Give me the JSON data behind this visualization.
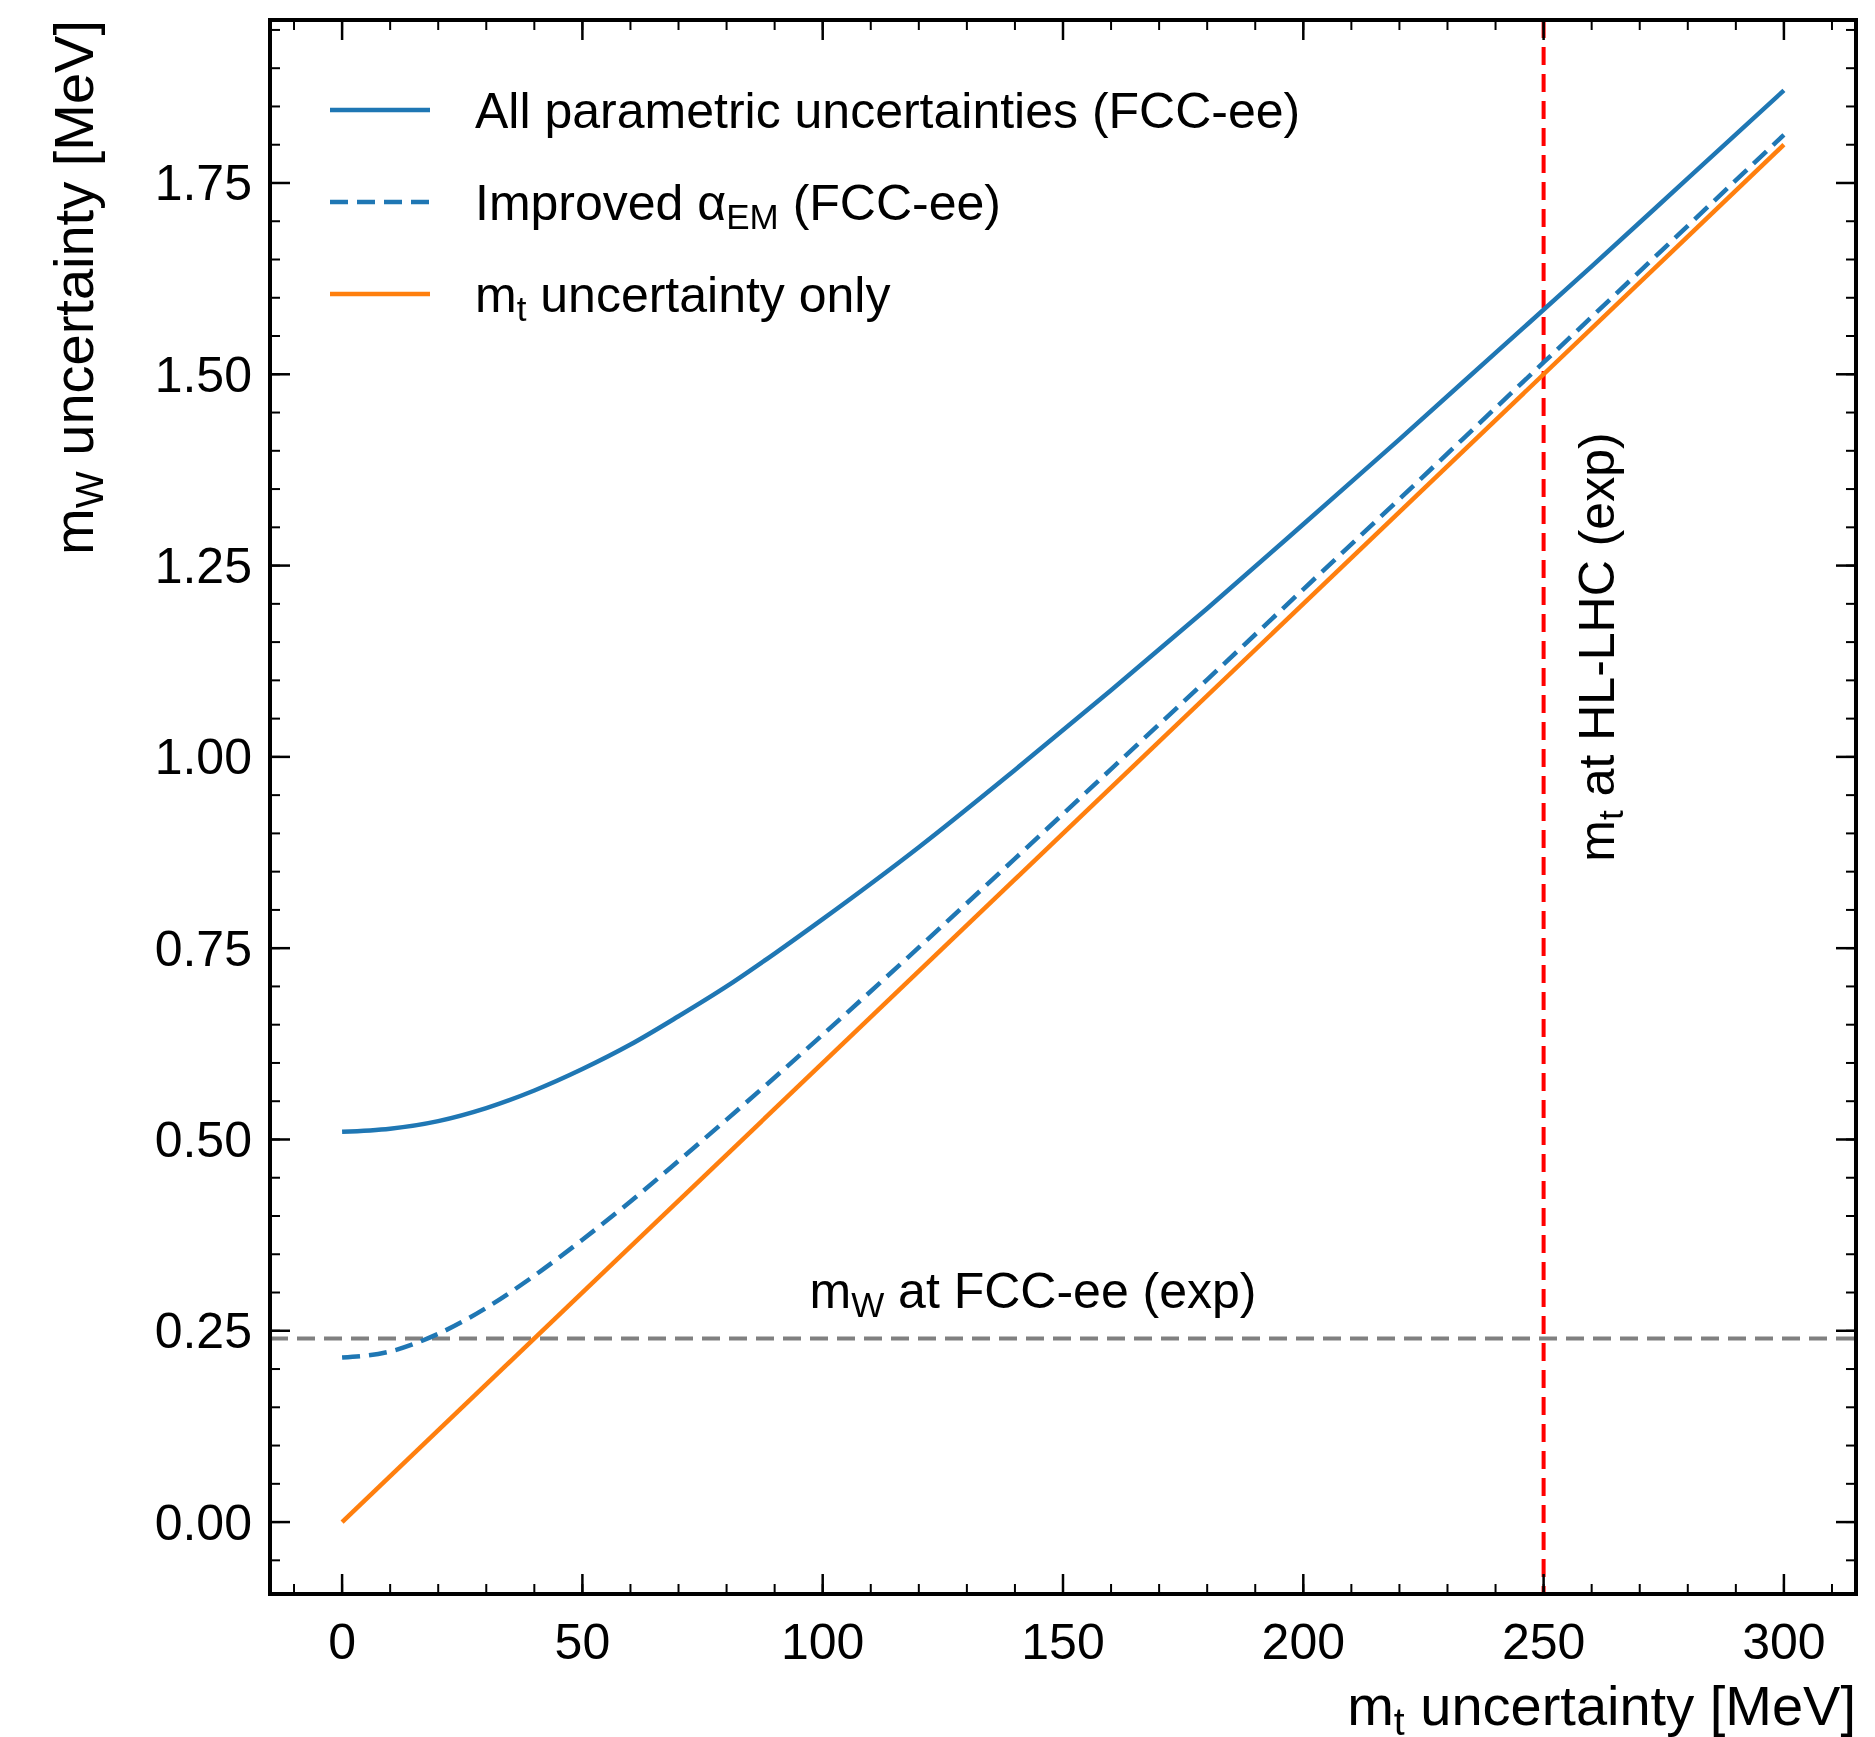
{
  "chart_data": {
    "type": "line",
    "xlabel": "m$_{t}$ uncertainty [MeV]",
    "ylabel": "m$_{W}$ uncertainty [MeV]",
    "xlim": [
      -15,
      315
    ],
    "ylim": [
      -0.094,
      1.963
    ],
    "xticks": [
      0,
      50,
      100,
      150,
      200,
      250,
      300
    ],
    "yticks": [
      {
        "value": 0,
        "label": "0.00"
      },
      {
        "value": 0.25,
        "label": "0.25"
      },
      {
        "value": 0.5,
        "label": "0.50"
      },
      {
        "value": 0.75,
        "label": "0.75"
      },
      {
        "value": 1,
        "label": "1.00"
      },
      {
        "value": 1.25,
        "label": "1.25"
      },
      {
        "value": 1.5,
        "label": "1.50"
      },
      {
        "value": 1.75,
        "label": "1.75"
      }
    ],
    "legend": "top left",
    "grid": false,
    "series": [
      {
        "name": "All parametric uncertainties (FCC-ee)",
        "color": "#1f77b4",
        "line_style": "solid",
        "x": [
          0,
          10,
          20,
          30,
          40,
          50,
          60,
          70,
          80,
          90,
          100,
          120,
          140,
          160,
          180,
          200,
          220,
          240,
          260,
          280,
          300
        ],
        "values": [
          0.51,
          0.514,
          0.524,
          0.541,
          0.564,
          0.592,
          0.624,
          0.661,
          0.7,
          0.743,
          0.788,
          0.882,
          0.983,
          1.087,
          1.194,
          1.304,
          1.415,
          1.528,
          1.641,
          1.756,
          1.871
        ]
      },
      {
        "name": "Improved α$_{EM}$ (FCC-ee)",
        "color": "#1f77b4",
        "line_style": "dashed",
        "x": [
          0,
          10,
          20,
          30,
          40,
          50,
          60,
          70,
          80,
          90,
          100,
          120,
          140,
          160,
          180,
          200,
          220,
          240,
          260,
          280,
          300
        ],
        "values": [
          0.215,
          0.223,
          0.246,
          0.28,
          0.322,
          0.369,
          0.419,
          0.472,
          0.526,
          0.581,
          0.637,
          0.751,
          0.867,
          0.984,
          1.101,
          1.219,
          1.337,
          1.456,
          1.575,
          1.694,
          1.813
        ]
      },
      {
        "name": "m$_{t}$ uncertainty only",
        "color": "#ff7f0e",
        "line_style": "solid",
        "x": [
          0,
          300
        ],
        "values": [
          0,
          1.8
        ]
      }
    ],
    "ref_lines": [
      {
        "axis": "y",
        "value": 0.24,
        "label": "m$_{W}$ at FCC-ee (exp)",
        "color": "#808080",
        "line_style": "dashed"
      },
      {
        "axis": "x",
        "value": 250,
        "label": "m$_{t}$ at HL-LHC (exp)",
        "color": "#ff0000",
        "line_style": "dashed"
      }
    ]
  }
}
